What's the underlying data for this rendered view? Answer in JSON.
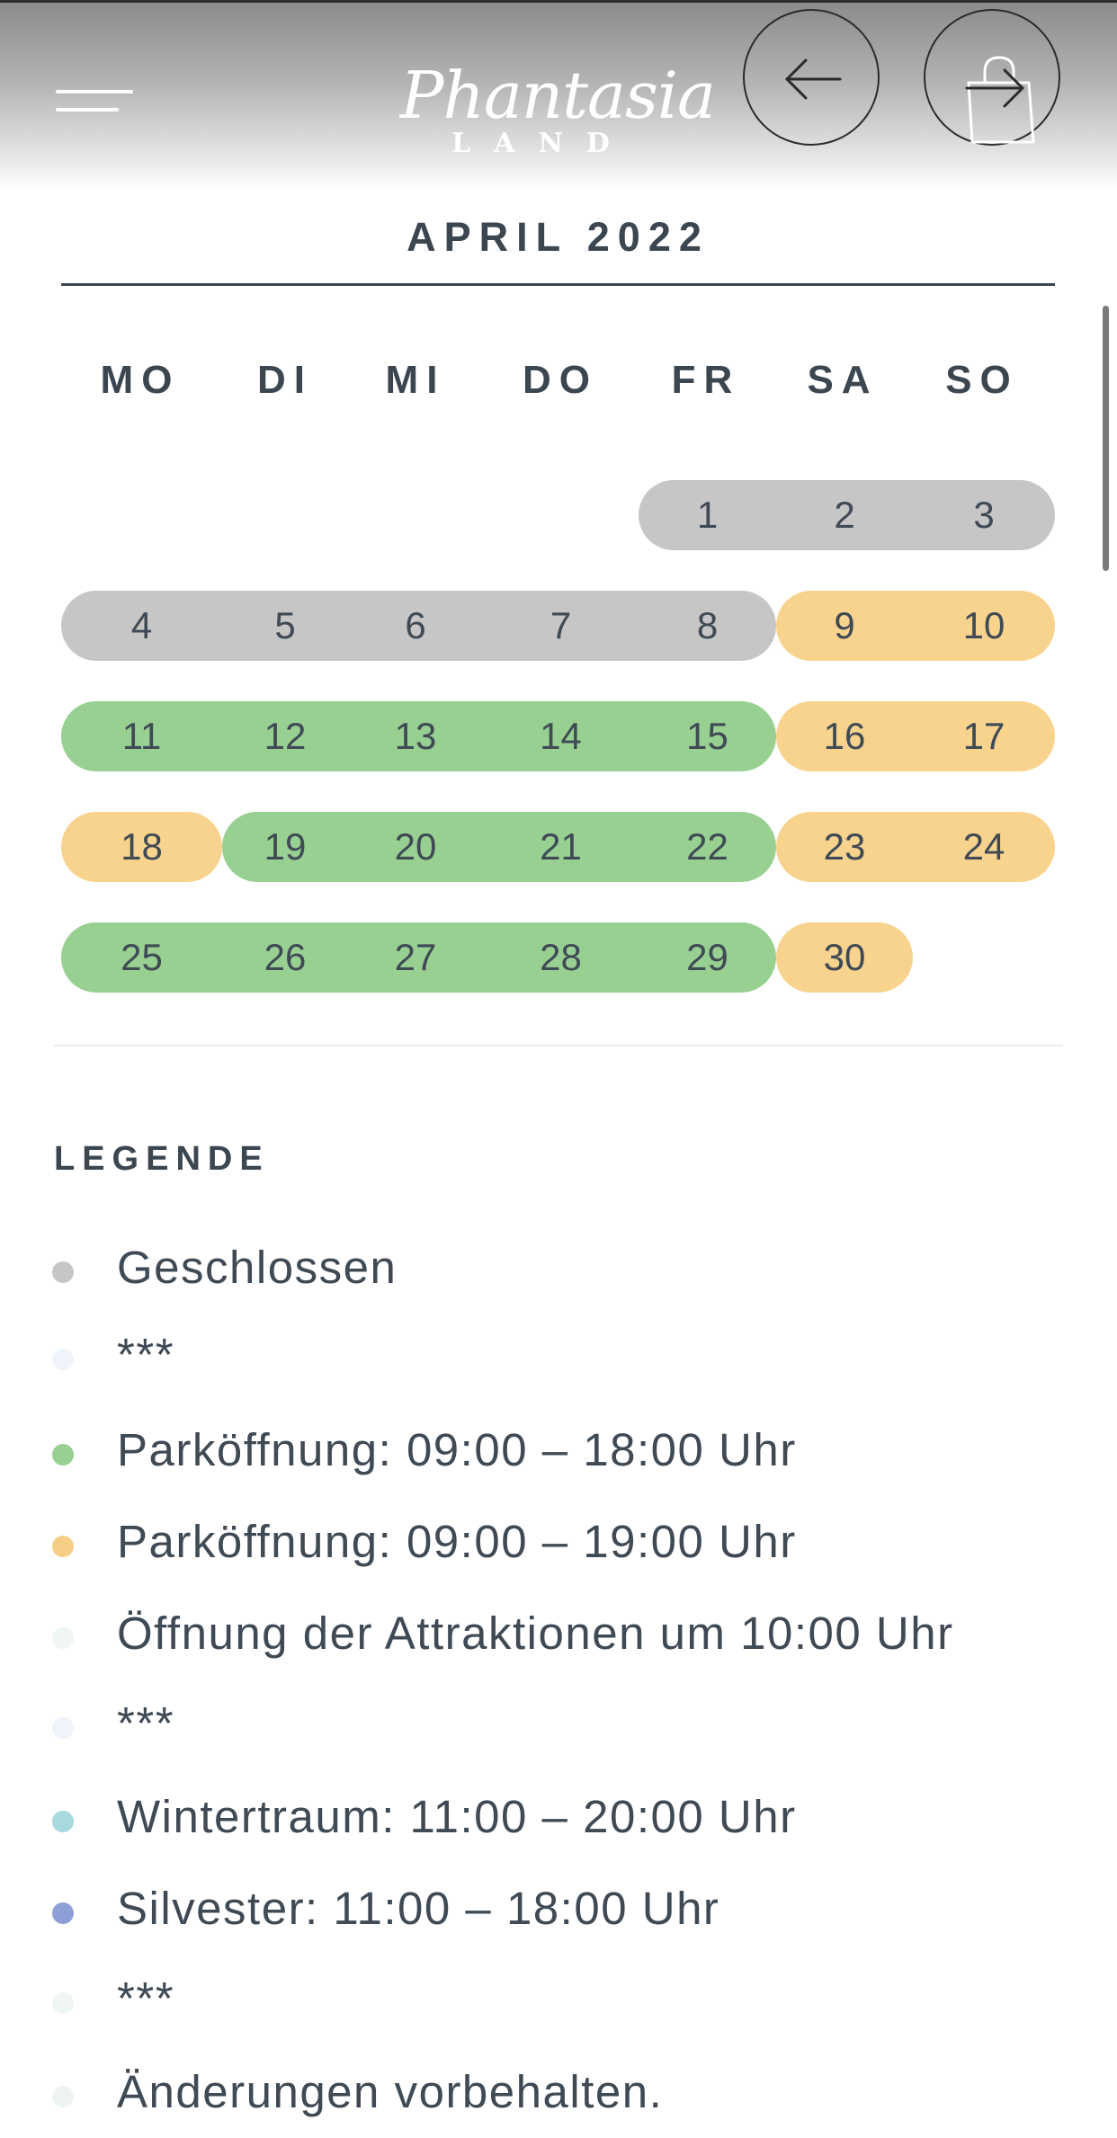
{
  "header": {
    "logo_line1": "Phantasia",
    "logo_line2": "LAND"
  },
  "calendar": {
    "month_title": "APRIL 2022",
    "weekdays": [
      "MO",
      "DI",
      "MI",
      "DO",
      "FR",
      "SA",
      "SO"
    ],
    "colors": {
      "closed": "#c6c6c6",
      "open_18": "#98d092",
      "open_19": "#f8d38e"
    },
    "weeks": [
      [
        null,
        null,
        null,
        null,
        {
          "day": "1",
          "status": "closed"
        },
        {
          "day": "2",
          "status": "closed"
        },
        {
          "day": "3",
          "status": "closed"
        }
      ],
      [
        {
          "day": "4",
          "status": "closed"
        },
        {
          "day": "5",
          "status": "closed"
        },
        {
          "day": "6",
          "status": "closed"
        },
        {
          "day": "7",
          "status": "closed"
        },
        {
          "day": "8",
          "status": "closed"
        },
        {
          "day": "9",
          "status": "open_19"
        },
        {
          "day": "10",
          "status": "open_19"
        }
      ],
      [
        {
          "day": "11",
          "status": "open_18"
        },
        {
          "day": "12",
          "status": "open_18"
        },
        {
          "day": "13",
          "status": "open_18"
        },
        {
          "day": "14",
          "status": "open_18"
        },
        {
          "day": "15",
          "status": "open_18"
        },
        {
          "day": "16",
          "status": "open_19"
        },
        {
          "day": "17",
          "status": "open_19"
        }
      ],
      [
        {
          "day": "18",
          "status": "open_19"
        },
        {
          "day": "19",
          "status": "open_18"
        },
        {
          "day": "20",
          "status": "open_18"
        },
        {
          "day": "21",
          "status": "open_18"
        },
        {
          "day": "22",
          "status": "open_18"
        },
        {
          "day": "23",
          "status": "open_19"
        },
        {
          "day": "24",
          "status": "open_19"
        }
      ],
      [
        {
          "day": "25",
          "status": "open_18"
        },
        {
          "day": "26",
          "status": "open_18"
        },
        {
          "day": "27",
          "status": "open_18"
        },
        {
          "day": "28",
          "status": "open_18"
        },
        {
          "day": "29",
          "status": "open_18"
        },
        {
          "day": "30",
          "status": "open_19"
        },
        null
      ]
    ]
  },
  "legend": {
    "title": "LEGENDE",
    "items": [
      {
        "text": "Geschlossen",
        "color": "#c6c6c6"
      },
      {
        "text": "***",
        "color": "#eef4f9"
      },
      {
        "text": "Parköffnung: 09:00 – 18:00 Uhr",
        "color": "#98d092"
      },
      {
        "text": "Parköffnung: 09:00 – 19:00 Uhr",
        "color": "#f6cf86"
      },
      {
        "text": "Öffnung der Attraktionen um 10:00 Uhr",
        "color": "#f0f6f3"
      },
      {
        "text": "***",
        "color": "#eef4f9"
      },
      {
        "text": "Wintertraum: 11:00 – 20:00 Uhr",
        "color": "#a7d9df"
      },
      {
        "text": "Silvester: 11:00 – 18:00 Uhr",
        "color": "#8e9ed6"
      },
      {
        "text": "***",
        "color": "#eff6f4"
      },
      {
        "text": "Änderungen vorbehalten.",
        "color": "#eef4f4"
      }
    ]
  }
}
